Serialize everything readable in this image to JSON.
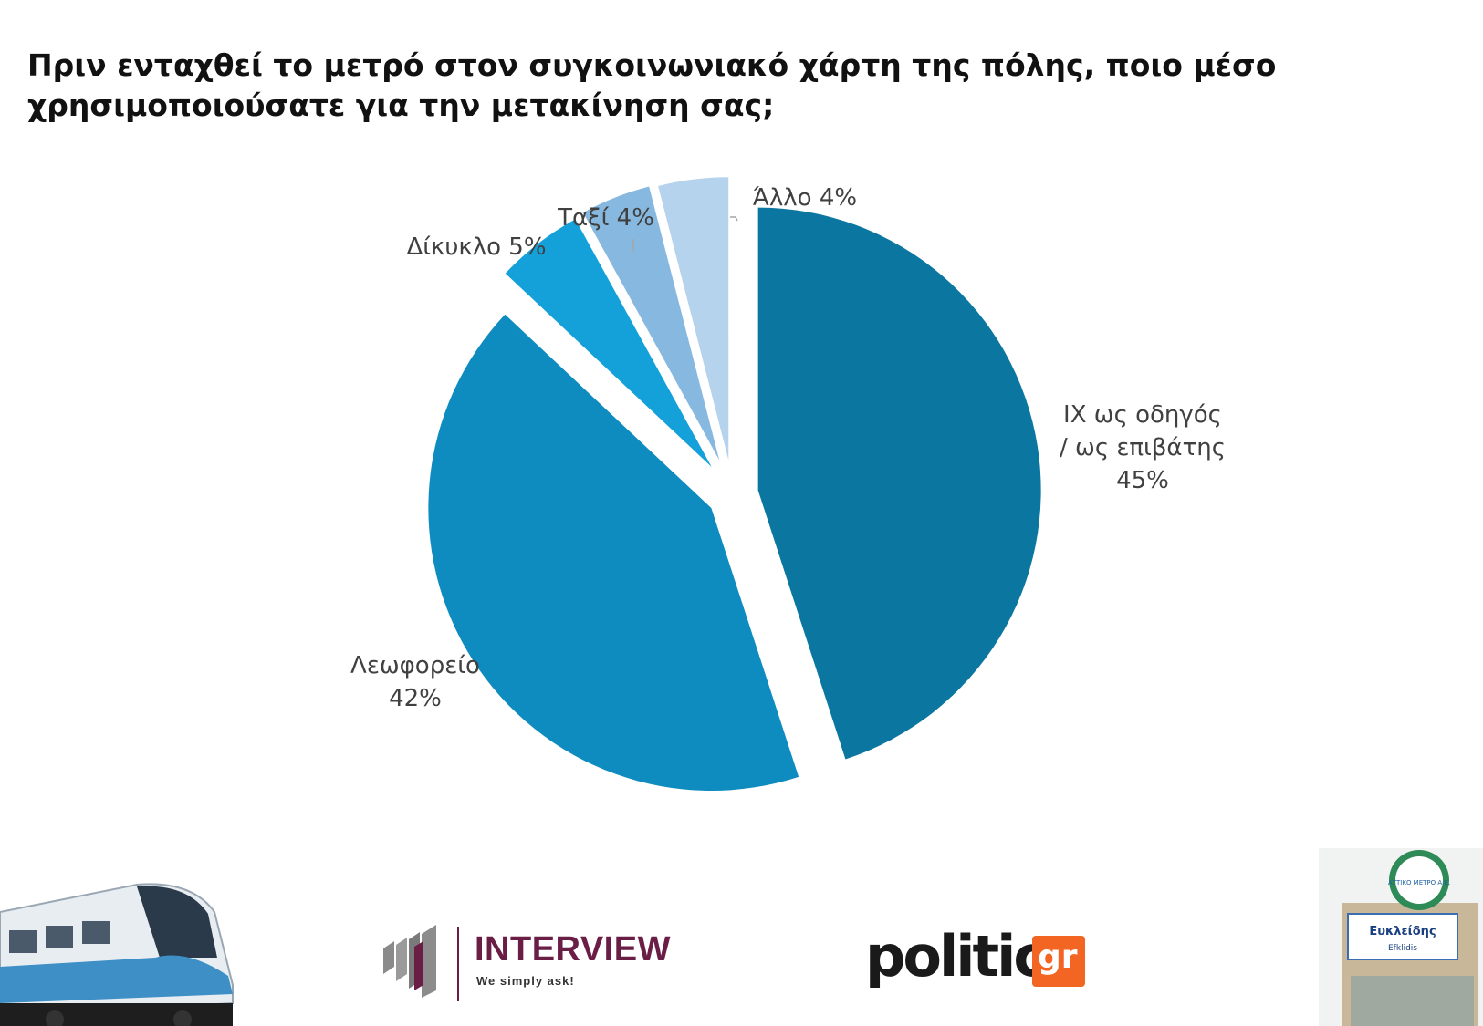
{
  "title": {
    "line1": "Πριν ενταχθεί το μετρό στον συγκοινωνιακό χάρτη της πόλης, ποιο μέσο",
    "line2": "χρησιμοποιούσατε για την μετακίνηση σας;"
  },
  "chart_data": {
    "type": "pie",
    "title": "Πριν ενταχθεί το μετρό στον συγκοινωνιακό χάρτη της πόλης, ποιο μέσο χρησιμοποιούσατε για την μετακίνηση σας;",
    "exploded": true,
    "start": "12 o'clock, clockwise",
    "slices": [
      {
        "label_lines": [
          "IX ως οδηγός",
          "/ ως επιβάτης",
          "45%"
        ],
        "category": "IX ως οδηγός / ως επιβάτης",
        "value": 45,
        "color": "#0b76a0"
      },
      {
        "label_lines": [
          "Λεωφορείο",
          "42%"
        ],
        "category": "Λεωφορείο",
        "value": 42,
        "color": "#0e8bbf"
      },
      {
        "label_lines": [
          "Δίκυκλο 5%"
        ],
        "category": "Δίκυκλο",
        "value": 5,
        "color": "#14a0d8"
      },
      {
        "label_lines": [
          "Ταξί 4%"
        ],
        "category": "Ταξί",
        "value": 4,
        "color": "#87b9e0"
      },
      {
        "label_lines": [
          "Άλλο 4%"
        ],
        "category": "Άλλο",
        "value": 4,
        "color": "#b5d3ec"
      }
    ]
  },
  "logos": {
    "interview_name": "INTERVIEW",
    "interview_tagline": "We simply ask!",
    "politic_name": "politic",
    "politic_suffix": "gr"
  },
  "photos": {
    "station_sign_line1": "Ευκλείδης",
    "station_sign_line2": "Efklidis",
    "station_header": "ΑΤΤΙΚΟ ΜΕΤΡΟ Α.Ε."
  }
}
